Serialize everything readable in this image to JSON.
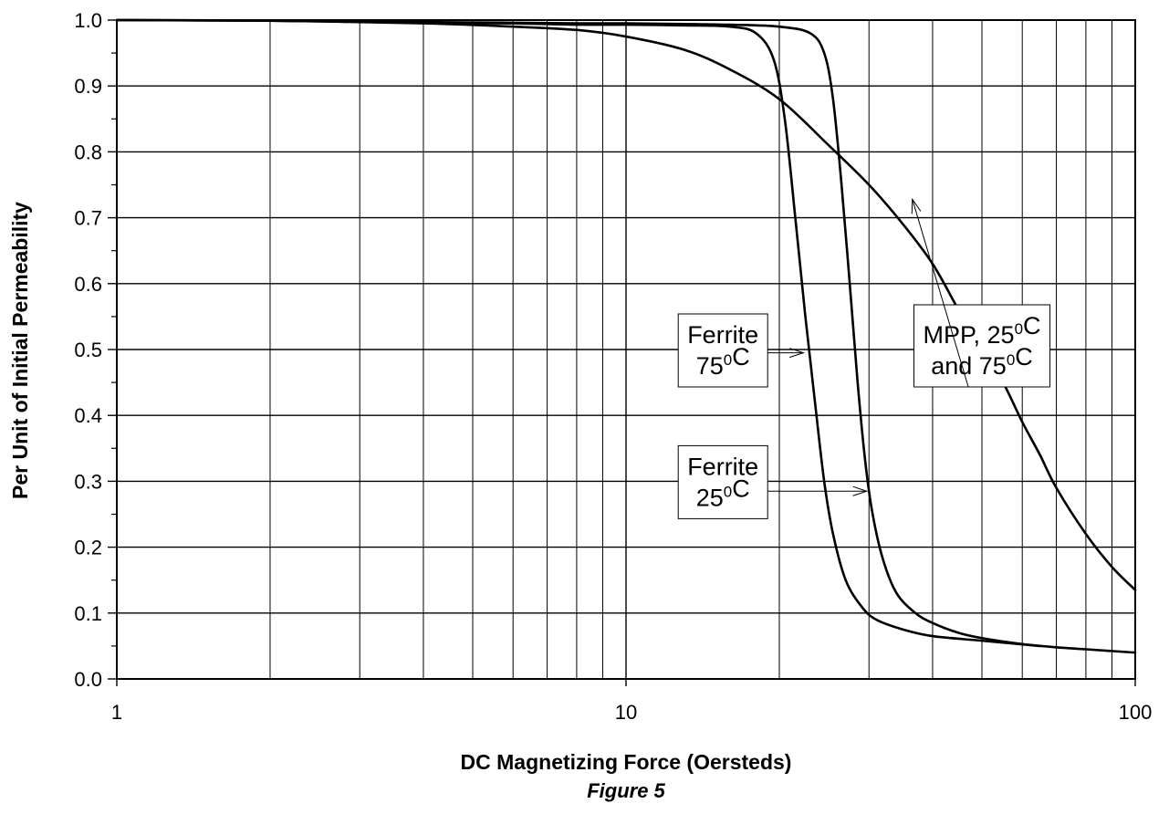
{
  "figure": {
    "caption": "Figure 5"
  },
  "chart_data": {
    "type": "line",
    "xlabel": "DC Magnetizing Force (Oersteds)",
    "ylabel": "Per Unit of Initial Permeability",
    "xscale": "log",
    "xlim": [
      1,
      100
    ],
    "ylim": [
      0.0,
      1.0
    ],
    "grid": true,
    "x_ticks": [
      1,
      10,
      100
    ],
    "x_tick_labels": [
      "1",
      "10",
      "100"
    ],
    "y_ticks": [
      0.0,
      0.1,
      0.2,
      0.3,
      0.4,
      0.5,
      0.6,
      0.7,
      0.8,
      0.9,
      1.0
    ],
    "y_tick_labels": [
      "0.0",
      "0.1",
      "0.2",
      "0.3",
      "0.4",
      "0.5",
      "0.6",
      "0.7",
      "0.8",
      "0.9",
      "1.0"
    ],
    "colors": {
      "line": "#000000",
      "grid": "#000000",
      "background": "#ffffff"
    },
    "series": [
      {
        "name": "MPP, 25°C and 75°C",
        "x": [
          1,
          2,
          4,
          6,
          8,
          10,
          13,
          16,
          20,
          25,
          30,
          35,
          40,
          45,
          50,
          55,
          60,
          65,
          70,
          80,
          90,
          100
        ],
        "y": [
          1.0,
          0.999,
          0.995,
          0.99,
          0.985,
          0.975,
          0.955,
          0.925,
          0.88,
          0.81,
          0.75,
          0.69,
          0.63,
          0.56,
          0.5,
          0.45,
          0.39,
          0.34,
          0.29,
          0.22,
          0.17,
          0.135
        ]
      },
      {
        "name": "Ferrite 75°C",
        "x": [
          1,
          2,
          4,
          6,
          8,
          10,
          13,
          16,
          18,
          19.5,
          20.5,
          21.5,
          22.5,
          23.5,
          24.5,
          25.5,
          27,
          29,
          31,
          35,
          40,
          50,
          65
        ],
        "y": [
          1.0,
          0.999,
          0.996,
          0.995,
          0.993,
          0.993,
          0.992,
          0.99,
          0.98,
          0.94,
          0.85,
          0.7,
          0.55,
          0.42,
          0.3,
          0.22,
          0.15,
          0.11,
          0.09,
          0.075,
          0.065,
          0.058,
          0.05
        ]
      },
      {
        "name": "Ferrite 25°C",
        "x": [
          1,
          2,
          4,
          6,
          8,
          10,
          13,
          16,
          20,
          23,
          24.5,
          25.5,
          26.5,
          27.5,
          28.5,
          29.5,
          30.5,
          32,
          34,
          37,
          40,
          45,
          50,
          60,
          70,
          80,
          100
        ],
        "y": [
          1.0,
          0.999,
          0.997,
          0.996,
          0.995,
          0.995,
          0.994,
          0.993,
          0.99,
          0.98,
          0.95,
          0.88,
          0.75,
          0.6,
          0.45,
          0.33,
          0.25,
          0.18,
          0.13,
          0.1,
          0.085,
          0.07,
          0.062,
          0.053,
          0.048,
          0.045,
          0.04
        ]
      }
    ],
    "annotations": [
      {
        "lines": [
          [
            {
              "t": "MPP, 25"
            },
            {
              "t": "0",
              "sup": true
            },
            {
              "t": "C"
            }
          ],
          [
            {
              "t": "and 75"
            },
            {
              "t": "0",
              "sup": true
            },
            {
              "t": "C"
            }
          ]
        ],
        "box_text": "MPP, 25⁰C and 75⁰C",
        "anchor": [
          50,
          0.5
        ],
        "target": [
          36.5,
          0.728
        ]
      },
      {
        "lines": [
          [
            {
              "t": "Ferrite"
            }
          ],
          [
            {
              "t": "75"
            },
            {
              "t": "0",
              "sup": true
            },
            {
              "t": "C"
            }
          ]
        ],
        "box_text": "Ferrite 75⁰C",
        "anchor": [
          15.5,
          0.5
        ],
        "target": [
          22.3,
          0.495
        ]
      },
      {
        "lines": [
          [
            {
              "t": "Ferrite"
            }
          ],
          [
            {
              "t": "25"
            },
            {
              "t": "0",
              "sup": true
            },
            {
              "t": "C"
            }
          ]
        ],
        "box_text": "Ferrite 25⁰C",
        "anchor": [
          15.5,
          0.3
        ],
        "target": [
          29.7,
          0.285
        ]
      }
    ]
  }
}
